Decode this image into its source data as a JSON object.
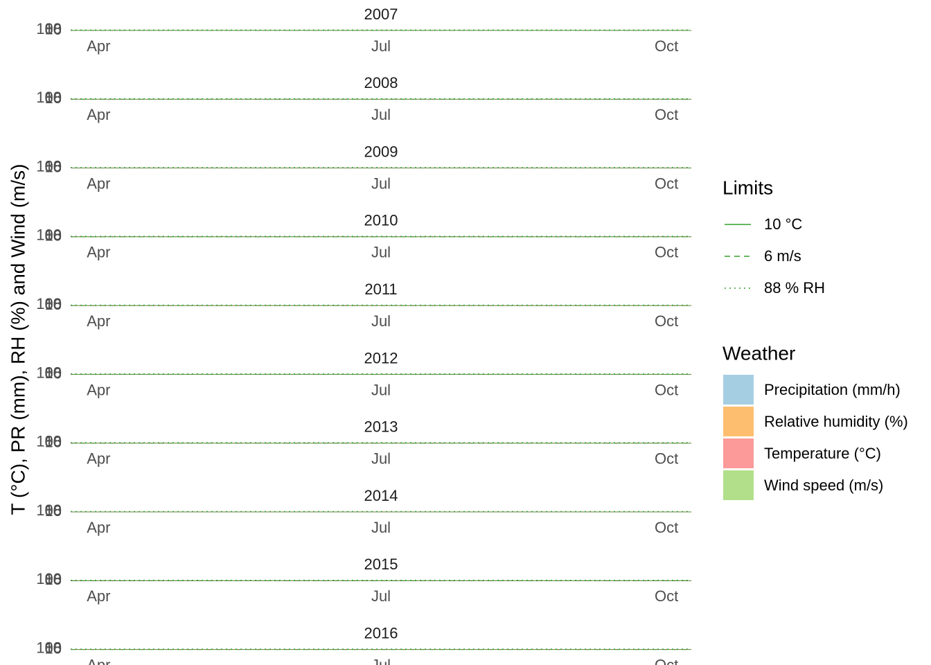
{
  "y_label": "T (°C), PR (mm), RH (%) and Wind (m/s)",
  "limits_legend": {
    "title": "Limits",
    "items": [
      {
        "label": "10 °C",
        "value": 10,
        "linetype": "solid",
        "color": "#33a02c"
      },
      {
        "label": "6 m/s",
        "value": 6,
        "linetype": "dashed",
        "color": "#33a02c"
      },
      {
        "label": "88 % RH",
        "value": 88,
        "linetype": "dotted",
        "color": "#33a02c"
      }
    ]
  },
  "weather_legend": {
    "title": "Weather",
    "items": [
      {
        "label": "Precipitation (mm/h)",
        "color": "#a6cee3"
      },
      {
        "label": "Relative humidity (%)",
        "color": "#fdbf6f"
      },
      {
        "label": "Temperature (°C)",
        "color": "#fb9a99"
      },
      {
        "label": "Wind speed (m/s)",
        "color": "#b2df8a"
      }
    ]
  },
  "chart_data": [
    {
      "type": "line",
      "title": "2007",
      "xlim": [
        82,
        282
      ],
      "xticks": [
        {
          "value": 91,
          "label": "Apr"
        },
        {
          "value": 182,
          "label": "Jul"
        },
        {
          "value": 274,
          "label": "Oct"
        }
      ],
      "ylim": [
        0,
        100
      ],
      "yticks": [
        6,
        10,
        88,
        100
      ]
    },
    {
      "type": "line",
      "title": "2008",
      "xlim": [
        82,
        282
      ],
      "xticks": [
        {
          "value": 91,
          "label": "Apr"
        },
        {
          "value": 182,
          "label": "Jul"
        },
        {
          "value": 274,
          "label": "Oct"
        }
      ],
      "ylim": [
        0,
        100
      ],
      "yticks": [
        6,
        10,
        88,
        100
      ]
    },
    {
      "type": "line",
      "title": "2009",
      "xlim": [
        82,
        282
      ],
      "xticks": [
        {
          "value": 91,
          "label": "Apr"
        },
        {
          "value": 182,
          "label": "Jul"
        },
        {
          "value": 274,
          "label": "Oct"
        }
      ],
      "ylim": [
        0,
        100
      ],
      "yticks": [
        6,
        10,
        88,
        100
      ]
    },
    {
      "type": "line",
      "title": "2010",
      "xlim": [
        82,
        282
      ],
      "xticks": [
        {
          "value": 91,
          "label": "Apr"
        },
        {
          "value": 182,
          "label": "Jul"
        },
        {
          "value": 274,
          "label": "Oct"
        }
      ],
      "ylim": [
        0,
        100
      ],
      "yticks": [
        6,
        10,
        88,
        100
      ]
    },
    {
      "type": "line",
      "title": "2011",
      "xlim": [
        82,
        282
      ],
      "xticks": [
        {
          "value": 91,
          "label": "Apr"
        },
        {
          "value": 182,
          "label": "Jul"
        },
        {
          "value": 274,
          "label": "Oct"
        }
      ],
      "ylim": [
        0,
        100
      ],
      "yticks": [
        6,
        10,
        88,
        100
      ]
    },
    {
      "type": "line",
      "title": "2012",
      "xlim": [
        82,
        282
      ],
      "xticks": [
        {
          "value": 91,
          "label": "Apr"
        },
        {
          "value": 182,
          "label": "Jul"
        },
        {
          "value": 274,
          "label": "Oct"
        }
      ],
      "ylim": [
        0,
        100
      ],
      "yticks": [
        6,
        10,
        88,
        100
      ]
    },
    {
      "type": "line",
      "title": "2013",
      "xlim": [
        82,
        282
      ],
      "xticks": [
        {
          "value": 91,
          "label": "Apr"
        },
        {
          "value": 182,
          "label": "Jul"
        },
        {
          "value": 274,
          "label": "Oct"
        }
      ],
      "ylim": [
        0,
        100
      ],
      "yticks": [
        6,
        10,
        88,
        100
      ]
    },
    {
      "type": "line",
      "title": "2014",
      "xlim": [
        82,
        282
      ],
      "xticks": [
        {
          "value": 91,
          "label": "Apr"
        },
        {
          "value": 182,
          "label": "Jul"
        },
        {
          "value": 274,
          "label": "Oct"
        }
      ],
      "ylim": [
        0,
        100
      ],
      "yticks": [
        6,
        10,
        88,
        100
      ]
    },
    {
      "type": "line",
      "title": "2015",
      "xlim": [
        82,
        282
      ],
      "xticks": [
        {
          "value": 91,
          "label": "Apr"
        },
        {
          "value": 182,
          "label": "Jul"
        },
        {
          "value": 274,
          "label": "Oct"
        }
      ],
      "ylim": [
        0,
        100
      ],
      "yticks": [
        6,
        10,
        88,
        100
      ]
    },
    {
      "type": "line",
      "title": "2016",
      "xlim": [
        82,
        282
      ],
      "xticks": [
        {
          "value": 91,
          "label": "Apr"
        },
        {
          "value": 182,
          "label": "Jul"
        },
        {
          "value": 274,
          "label": "Oct"
        }
      ],
      "ylim": [
        0,
        100
      ],
      "yticks": [
        6,
        10,
        88,
        100
      ]
    }
  ]
}
